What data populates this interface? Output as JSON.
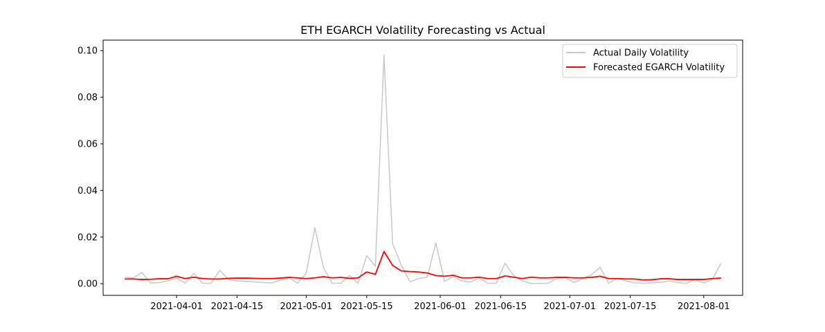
{
  "chart_data": {
    "type": "line",
    "title": "ETH EGARCH Volatility Forecasting vs Actual",
    "xlabel": "",
    "ylabel": "",
    "x_range": [
      "2021-03-15",
      "2021-08-10"
    ],
    "ylim": [
      -0.005,
      0.1045
    ],
    "x_ticks": [
      "2021-04-01",
      "2021-04-15",
      "2021-05-01",
      "2021-05-15",
      "2021-06-01",
      "2021-06-15",
      "2021-07-01",
      "2021-07-15",
      "2021-08-01"
    ],
    "y_ticks": [
      0.0,
      0.02,
      0.04,
      0.06,
      0.08,
      0.1
    ],
    "y_tick_labels": [
      "0.00",
      "0.02",
      "0.04",
      "0.06",
      "0.08",
      "0.10"
    ],
    "grid": false,
    "legend_position": "top-right",
    "x": [
      "2021-03-20",
      "2021-03-22",
      "2021-03-24",
      "2021-03-26",
      "2021-03-28",
      "2021-03-30",
      "2021-04-01",
      "2021-04-03",
      "2021-04-05",
      "2021-04-07",
      "2021-04-09",
      "2021-04-11",
      "2021-04-13",
      "2021-04-15",
      "2021-04-17",
      "2021-04-19",
      "2021-04-21",
      "2021-04-23",
      "2021-04-25",
      "2021-04-27",
      "2021-04-29",
      "2021-05-01",
      "2021-05-03",
      "2021-05-05",
      "2021-05-07",
      "2021-05-09",
      "2021-05-11",
      "2021-05-13",
      "2021-05-15",
      "2021-05-17",
      "2021-05-19",
      "2021-05-21",
      "2021-05-23",
      "2021-05-25",
      "2021-05-27",
      "2021-05-29",
      "2021-05-31",
      "2021-06-02",
      "2021-06-04",
      "2021-06-06",
      "2021-06-08",
      "2021-06-10",
      "2021-06-12",
      "2021-06-14",
      "2021-06-16",
      "2021-06-18",
      "2021-06-20",
      "2021-06-22",
      "2021-06-24",
      "2021-06-26",
      "2021-06-28",
      "2021-06-30",
      "2021-07-02",
      "2021-07-04",
      "2021-07-06",
      "2021-07-08",
      "2021-07-10",
      "2021-07-12",
      "2021-07-14",
      "2021-07-16",
      "2021-07-18",
      "2021-07-20",
      "2021-07-22",
      "2021-07-24",
      "2021-07-26",
      "2021-07-28",
      "2021-07-30",
      "2021-08-01",
      "2021-08-03",
      "2021-08-05"
    ],
    "series": [
      {
        "name": "Actual Daily Volatility",
        "color": "#c8c8c8",
        "values": [
          0.0028,
          0.0025,
          0.0048,
          0.0002,
          0.0005,
          0.0012,
          0.0025,
          0.0002,
          0.0045,
          0.0002,
          0.0002,
          0.0058,
          0.0018,
          0.0012,
          0.001,
          0.0008,
          0.0005,
          0.0003,
          0.0015,
          0.0025,
          0.0002,
          0.0045,
          0.024,
          0.0068,
          0.0002,
          0.0002,
          0.0035,
          0.0002,
          0.012,
          0.0075,
          0.098,
          0.0172,
          0.008,
          0.0008,
          0.0022,
          0.0028,
          0.0175,
          0.001,
          0.003,
          0.0012,
          0.0007,
          0.0025,
          0.0002,
          0.0002,
          0.0088,
          0.0035,
          0.0012,
          0.0001,
          0.0001,
          0.0002,
          0.0022,
          0.0025,
          0.0005,
          0.0022,
          0.0038,
          0.007,
          0.0002,
          0.0022,
          0.0012,
          0.0003,
          0.0002,
          0.0003,
          0.0006,
          0.0012,
          0.0005,
          0.0001,
          0.0018,
          0.0003,
          0.0018,
          0.0088
        ]
      },
      {
        "name": "Forecasted EGARCH Volatility",
        "color": "#ff0000",
        "values": [
          0.002,
          0.002,
          0.0018,
          0.0019,
          0.0021,
          0.0021,
          0.0032,
          0.0022,
          0.0028,
          0.0022,
          0.002,
          0.002,
          0.0023,
          0.0024,
          0.0024,
          0.0023,
          0.0022,
          0.0022,
          0.0024,
          0.0027,
          0.0025,
          0.0022,
          0.0025,
          0.003,
          0.0025,
          0.0027,
          0.0023,
          0.0025,
          0.005,
          0.004,
          0.0138,
          0.0078,
          0.0055,
          0.0052,
          0.005,
          0.0046,
          0.0035,
          0.0032,
          0.0036,
          0.0025,
          0.0025,
          0.0028,
          0.0022,
          0.0022,
          0.0033,
          0.0028,
          0.0022,
          0.0028,
          0.0025,
          0.0025,
          0.0027,
          0.0027,
          0.0025,
          0.0025,
          0.0027,
          0.0032,
          0.0022,
          0.0022,
          0.002,
          0.002,
          0.0016,
          0.0017,
          0.0021,
          0.0021,
          0.0018,
          0.0018,
          0.0018,
          0.0018,
          0.0022,
          0.0024
        ]
      }
    ]
  }
}
